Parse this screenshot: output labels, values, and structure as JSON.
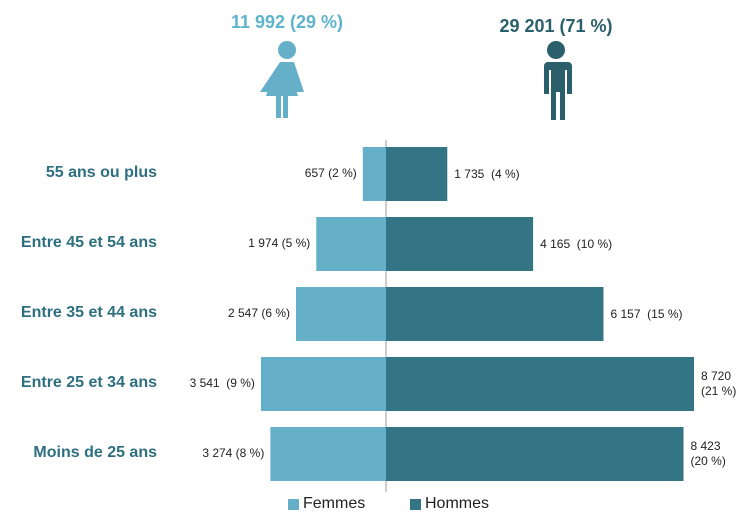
{
  "chart_data": {
    "type": "pyramid",
    "categories": [
      "55 ans ou plus",
      "Entre 45 et 54 ans",
      "Entre 35 et 44 ans",
      "Entre 25 et 34 ans",
      "Moins de 25 ans"
    ],
    "series": [
      {
        "name": "Femmes",
        "color": "#65b0c8",
        "total_label": "11 992 (29 %)",
        "values": [
          657,
          1974,
          2547,
          3541,
          3274
        ],
        "value_labels": [
          "657 (2 %)",
          "1 974 (5 %)",
          "2 547 (6 %)",
          "3 541  (9 %)",
          "3 274 (8 %)"
        ]
      },
      {
        "name": "Hommes",
        "color": "#337585",
        "total_label": "29 201 (71 %)",
        "values": [
          1735,
          4165,
          6157,
          8720,
          8423
        ],
        "value_labels": [
          "1 735  (4 %)",
          "4 165  (10 %)",
          "6 157  (15 %)",
          "8 720 (21 %)",
          "8 423 (20 %)"
        ]
      }
    ]
  }
}
